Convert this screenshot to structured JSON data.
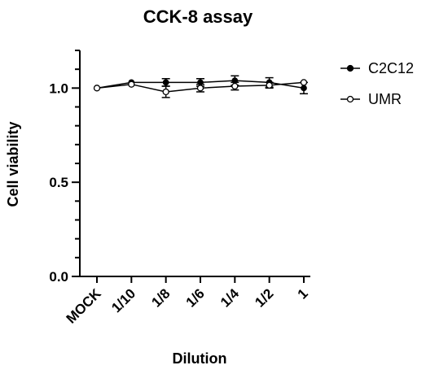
{
  "chart_data": {
    "type": "line",
    "title": "CCK-8 assay",
    "xlabel": "Dilution",
    "ylabel": "Cell viability",
    "categories": [
      "MOCK",
      "1/10",
      "1/8",
      "1/6",
      "1/4",
      "1/2",
      "1"
    ],
    "ylim": [
      0,
      1.2
    ],
    "yticks": [
      0.0,
      0.5,
      1.0
    ],
    "ytick_labels": [
      "0.0",
      "0.5",
      "1.0"
    ],
    "grid": false,
    "legend_position": "top-right",
    "series": [
      {
        "name": "C2C12",
        "marker": "filled-circle",
        "color": "#000000",
        "values": [
          1.0,
          1.03,
          1.03,
          1.03,
          1.04,
          1.03,
          1.0
        ],
        "errors": [
          0.0,
          0.0,
          0.02,
          0.02,
          0.025,
          0.025,
          0.03
        ]
      },
      {
        "name": "UMR",
        "marker": "open-circle",
        "color": "#000000",
        "values": [
          1.0,
          1.02,
          0.98,
          1.0,
          1.01,
          1.015,
          1.03
        ],
        "errors": [
          0.0,
          0.0,
          0.03,
          0.02,
          0.02,
          0.015,
          0.0
        ]
      }
    ]
  }
}
